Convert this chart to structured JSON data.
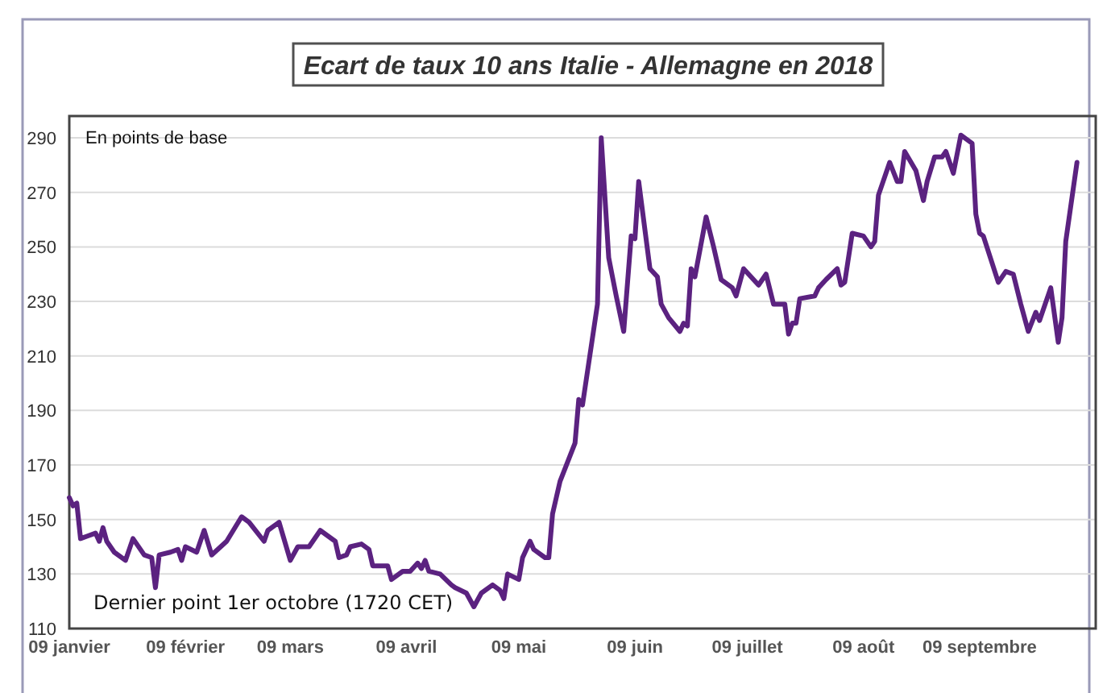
{
  "chart_data": {
    "type": "line",
    "title": "Ecart de taux 10 ans Italie - Allemagne en 2018",
    "annotations": [
      "En points de base",
      "Dernier point 1er octobre (1720 CET)"
    ],
    "x": [
      "2018-01-09",
      "2018-01-10",
      "2018-01-11",
      "2018-01-12",
      "2018-01-14",
      "2018-01-16",
      "2018-01-17",
      "2018-01-18",
      "2018-01-19",
      "2018-01-21",
      "2018-01-24",
      "2018-01-26",
      "2018-01-29",
      "2018-01-31",
      "2018-02-01",
      "2018-02-02",
      "2018-02-05",
      "2018-02-07",
      "2018-02-08",
      "2018-02-09",
      "2018-02-12",
      "2018-02-14",
      "2018-02-16",
      "2018-02-20",
      "2018-02-24",
      "2018-02-26",
      "2018-03-02",
      "2018-03-03",
      "2018-03-06",
      "2018-03-09",
      "2018-03-11",
      "2018-03-14",
      "2018-03-17",
      "2018-03-21",
      "2018-03-22",
      "2018-03-24",
      "2018-03-25",
      "2018-03-28",
      "2018-03-30",
      "2018-03-31",
      "2018-04-04",
      "2018-04-05",
      "2018-04-08",
      "2018-04-10",
      "2018-04-12",
      "2018-04-13",
      "2018-04-14",
      "2018-04-15",
      "2018-04-18",
      "2018-04-21",
      "2018-04-22",
      "2018-04-25",
      "2018-04-27",
      "2018-04-29",
      "2018-05-02",
      "2018-05-04",
      "2018-05-05",
      "2018-05-06",
      "2018-05-09",
      "2018-05-10",
      "2018-05-12",
      "2018-05-13",
      "2018-05-16",
      "2018-05-17",
      "2018-05-18",
      "2018-05-20",
      "2018-05-24",
      "2018-05-25",
      "2018-05-26",
      "2018-05-30",
      "2018-05-31",
      "2018-06-02",
      "2018-06-04",
      "2018-06-06",
      "2018-06-08",
      "2018-06-09",
      "2018-06-10",
      "2018-06-13",
      "2018-06-15",
      "2018-06-16",
      "2018-06-18",
      "2018-06-21",
      "2018-06-22",
      "2018-06-23",
      "2018-06-24",
      "2018-06-25",
      "2018-06-28",
      "2018-06-30",
      "2018-07-02",
      "2018-07-05",
      "2018-07-06",
      "2018-07-08",
      "2018-07-12",
      "2018-07-14",
      "2018-07-16",
      "2018-07-19",
      "2018-07-20",
      "2018-07-21",
      "2018-07-22",
      "2018-07-23",
      "2018-07-27",
      "2018-07-28",
      "2018-07-30",
      "2018-08-02",
      "2018-08-03",
      "2018-08-04",
      "2018-08-06",
      "2018-08-09",
      "2018-08-11",
      "2018-08-12",
      "2018-08-13",
      "2018-08-16",
      "2018-08-18",
      "2018-08-19",
      "2018-08-20",
      "2018-08-23",
      "2018-08-25",
      "2018-08-26",
      "2018-08-28",
      "2018-08-30",
      "2018-08-31",
      "2018-09-02",
      "2018-09-04",
      "2018-09-07",
      "2018-09-08",
      "2018-09-09",
      "2018-09-10",
      "2018-09-14",
      "2018-09-16",
      "2018-09-18",
      "2018-09-20",
      "2018-09-22",
      "2018-09-24",
      "2018-09-25",
      "2018-09-28",
      "2018-09-30",
      "2018-10-01",
      "2018-10-02",
      "2018-10-05"
    ],
    "series": [
      {
        "color": "#5b2280",
        "values": [
          158,
          155,
          156,
          143,
          144,
          145,
          142,
          147,
          142,
          138,
          135,
          143,
          137,
          136,
          125,
          137,
          138,
          139,
          135,
          140,
          138,
          146,
          137,
          142,
          151,
          149,
          142,
          146,
          149,
          135,
          140,
          140,
          146,
          142,
          136,
          137,
          140,
          141,
          139,
          133,
          133,
          128,
          131,
          131,
          134,
          132,
          135,
          131,
          130,
          126,
          125,
          123,
          118,
          123,
          126,
          124,
          121,
          130,
          128,
          136,
          142,
          139,
          136,
          136,
          152,
          164,
          178,
          194,
          192,
          229,
          290,
          246,
          232,
          219,
          254,
          253,
          274,
          242,
          239,
          229,
          224,
          219,
          222,
          221,
          242,
          239,
          261,
          250,
          238,
          235,
          232,
          242,
          236,
          240,
          229,
          229,
          218,
          222,
          222,
          231,
          232,
          235,
          238,
          242,
          236,
          237,
          255,
          254,
          250,
          252,
          269,
          281,
          274,
          274,
          285,
          278,
          267,
          274,
          283,
          283,
          285,
          277,
          291,
          288,
          262,
          255,
          254,
          237,
          241,
          240,
          229,
          219,
          226,
          223,
          235,
          215,
          224,
          252,
          281
        ]
      }
    ],
    "xlim": [
      "2018-01-09",
      "2018-10-10"
    ],
    "xticks": [
      {
        "value": "2018-01-09",
        "label": "09 janvier"
      },
      {
        "value": "2018-02-09",
        "label": "09 février"
      },
      {
        "value": "2018-03-09",
        "label": "09 mars"
      },
      {
        "value": "2018-04-09",
        "label": "09 avril"
      },
      {
        "value": "2018-05-09",
        "label": "09 mai"
      },
      {
        "value": "2018-06-09",
        "label": "09 juin"
      },
      {
        "value": "2018-07-09",
        "label": "09 juillet"
      },
      {
        "value": "2018-08-09",
        "label": "09 août"
      },
      {
        "value": "2018-09-09",
        "label": "09 septembre"
      }
    ],
    "ylim": [
      110,
      298
    ],
    "yticks": [
      110,
      130,
      150,
      170,
      190,
      210,
      230,
      250,
      270,
      290
    ],
    "grid": "y",
    "line_style": "solid"
  }
}
